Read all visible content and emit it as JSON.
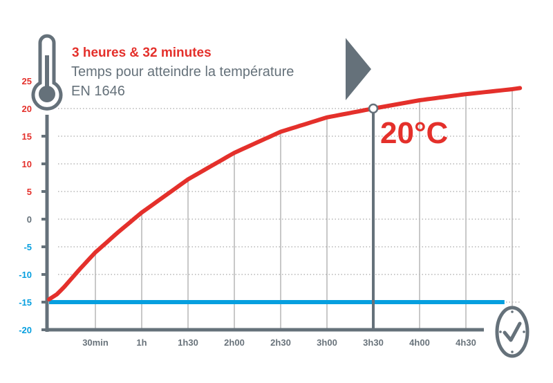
{
  "header": {
    "highlight": "3 heures & 32 minutes",
    "line1": "Temps pour atteindre la température",
    "line2": "EN 1646"
  },
  "marker_label": "20°C",
  "colors": {
    "curve": "#e4302b",
    "baseline": "#069fdf",
    "axis": "#65717a",
    "grid": "#b5b5b5",
    "positive_label": "#e4302b",
    "zero_label": "#65717a",
    "negative_label": "#069fdf"
  },
  "icons": [
    "thermometer-icon",
    "arrow-right-icon",
    "clock-check-icon"
  ],
  "chart_data": {
    "type": "line",
    "title": "",
    "xlabel": "",
    "ylabel": "",
    "ylim": [
      -20,
      25
    ],
    "xlim_minutes": [
      0,
      305
    ],
    "yticks": [
      25,
      20,
      15,
      10,
      5,
      0,
      -5,
      -10,
      -15,
      -20
    ],
    "xticks": [
      {
        "label": "30min",
        "minutes": 30
      },
      {
        "label": "1h",
        "minutes": 60
      },
      {
        "label": "1h30",
        "minutes": 90
      },
      {
        "label": "2h00",
        "minutes": 120
      },
      {
        "label": "2h30",
        "minutes": 150
      },
      {
        "label": "3h00",
        "minutes": 180
      },
      {
        "label": "3h30",
        "minutes": 210
      },
      {
        "label": "4h00",
        "minutes": 240
      },
      {
        "label": "4h30",
        "minutes": 270
      }
    ],
    "grid": true,
    "series": [
      {
        "role": "temperature",
        "x_minutes": [
          0,
          5,
          10,
          20,
          30,
          45,
          60,
          90,
          120,
          150,
          180,
          210,
          240,
          270,
          300,
          305
        ],
        "values": [
          -14.5,
          -13.6,
          -12.2,
          -9,
          -6,
          -2.3,
          1.2,
          7.2,
          12,
          15.8,
          18.4,
          20,
          21.5,
          22.6,
          23.5,
          23.7
        ]
      },
      {
        "role": "reference",
        "x_minutes": [
          0,
          295
        ],
        "values": [
          -15,
          -15
        ]
      }
    ],
    "annotation": {
      "x_minutes": 210,
      "value": 20,
      "label": "20°C"
    }
  }
}
